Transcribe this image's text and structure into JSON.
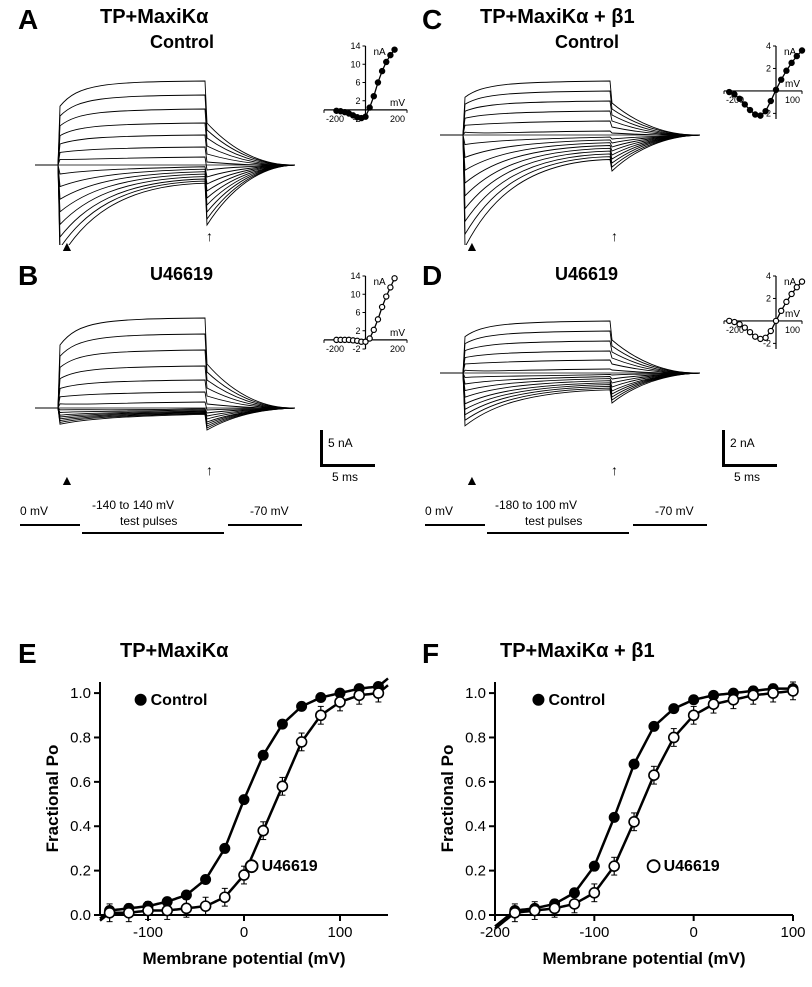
{
  "labels": {
    "A": "A",
    "B": "B",
    "C": "C",
    "D": "D",
    "E": "E",
    "F": "F"
  },
  "titles": {
    "AB": "TP+MaxiKα",
    "CD": "TP+MaxiKα + β1",
    "E": "TP+MaxiKα",
    "F": "TP+MaxiKα + β1",
    "A_sub": "Control",
    "B_sub": "U46619",
    "C_sub": "Control",
    "D_sub": "U46619"
  },
  "insets": {
    "A": {
      "nA_label": "nA",
      "mV_label": "mV",
      "yticks": [
        -2,
        2,
        6,
        10,
        14
      ],
      "xlim": [
        -200,
        200
      ],
      "ylim": [
        -2,
        14
      ],
      "pts": [
        [
          -140,
          -0.2
        ],
        [
          -120,
          -0.3
        ],
        [
          -100,
          -0.5
        ],
        [
          -80,
          -0.8
        ],
        [
          -60,
          -1.2
        ],
        [
          -40,
          -1.6
        ],
        [
          -20,
          -1.8
        ],
        [
          0,
          -1.5
        ],
        [
          20,
          0.5
        ],
        [
          40,
          3
        ],
        [
          60,
          6
        ],
        [
          80,
          8.5
        ],
        [
          100,
          10.5
        ],
        [
          120,
          12
        ],
        [
          140,
          13.2
        ]
      ],
      "marker": "filled"
    },
    "B": {
      "nA_label": "nA",
      "mV_label": "mV",
      "yticks": [
        -2,
        2,
        6,
        10,
        14
      ],
      "xlim": [
        -200,
        200
      ],
      "ylim": [
        -2,
        14
      ],
      "pts": [
        [
          -140,
          0
        ],
        [
          -120,
          0
        ],
        [
          -100,
          0
        ],
        [
          -80,
          0
        ],
        [
          -60,
          -0.1
        ],
        [
          -40,
          -0.2
        ],
        [
          -20,
          -0.4
        ],
        [
          0,
          -0.4
        ],
        [
          20,
          0.3
        ],
        [
          40,
          2.2
        ],
        [
          60,
          4.5
        ],
        [
          80,
          7.2
        ],
        [
          100,
          9.5
        ],
        [
          120,
          11.5
        ],
        [
          140,
          13.5
        ]
      ],
      "marker": "open"
    },
    "C": {
      "nA_label": "nA",
      "mV_label": "mV",
      "yticks": [
        -2,
        0,
        2,
        4
      ],
      "xlim": [
        -200,
        100
      ],
      "ylim": [
        -2.5,
        4
      ],
      "pts": [
        [
          -180,
          -0.1
        ],
        [
          -160,
          -0.3
        ],
        [
          -140,
          -0.7
        ],
        [
          -120,
          -1.2
        ],
        [
          -100,
          -1.7
        ],
        [
          -80,
          -2.1
        ],
        [
          -60,
          -2.2
        ],
        [
          -40,
          -1.8
        ],
        [
          -20,
          -0.9
        ],
        [
          0,
          0.1
        ],
        [
          20,
          1.0
        ],
        [
          40,
          1.8
        ],
        [
          60,
          2.5
        ],
        [
          80,
          3.1
        ],
        [
          100,
          3.6
        ]
      ],
      "marker": "filled"
    },
    "D": {
      "nA_label": "nA",
      "mV_label": "mV",
      "yticks": [
        -2,
        0,
        2,
        4
      ],
      "xlim": [
        -200,
        100
      ],
      "ylim": [
        -2.5,
        4
      ],
      "pts": [
        [
          -180,
          0
        ],
        [
          -160,
          -0.1
        ],
        [
          -140,
          -0.3
        ],
        [
          -120,
          -0.6
        ],
        [
          -100,
          -1.0
        ],
        [
          -80,
          -1.4
        ],
        [
          -60,
          -1.6
        ],
        [
          -40,
          -1.5
        ],
        [
          -20,
          -0.9
        ],
        [
          0,
          0
        ],
        [
          20,
          0.9
        ],
        [
          40,
          1.7
        ],
        [
          60,
          2.4
        ],
        [
          80,
          3.0
        ],
        [
          100,
          3.5
        ]
      ],
      "marker": "open"
    }
  },
  "scalebars": {
    "B": {
      "y": "5 nA",
      "x": "5 ms"
    },
    "D": {
      "y": "2 nA",
      "x": "5 ms"
    }
  },
  "protocols": {
    "left": {
      "hold": "0 mV",
      "range": "-140 to 140 mV",
      "sub": "test pulses",
      "tail": "-70 mV"
    },
    "right": {
      "hold": "0 mV",
      "range": "-180 to 100 mV",
      "sub": "test pulses",
      "tail": "-70 mV"
    }
  },
  "chartE": {
    "xlabel": "Membrane potential (mV)",
    "ylabel": "Fractional Po",
    "xlim": [
      -150,
      150
    ],
    "ylim": [
      0,
      1.05
    ],
    "xticks": [
      -100,
      0,
      100
    ],
    "yticks": [
      0,
      0.2,
      0.4,
      0.6,
      0.8,
      1.0
    ],
    "legend_control": "Control",
    "legend_u": "U46619",
    "ctrl": [
      [
        -140,
        0.02
      ],
      [
        -120,
        0.03
      ],
      [
        -100,
        0.04
      ],
      [
        -80,
        0.06
      ],
      [
        -60,
        0.09
      ],
      [
        -40,
        0.16
      ],
      [
        -20,
        0.3
      ],
      [
        0,
        0.52
      ],
      [
        20,
        0.72
      ],
      [
        40,
        0.86
      ],
      [
        60,
        0.94
      ],
      [
        80,
        0.98
      ],
      [
        100,
        1.0
      ],
      [
        120,
        1.02
      ],
      [
        140,
        1.03
      ]
    ],
    "u": [
      [
        -140,
        0.01
      ],
      [
        -120,
        0.01
      ],
      [
        -100,
        0.02
      ],
      [
        -80,
        0.02
      ],
      [
        -60,
        0.03
      ],
      [
        -40,
        0.04
      ],
      [
        -20,
        0.08
      ],
      [
        0,
        0.18
      ],
      [
        20,
        0.38
      ],
      [
        40,
        0.58
      ],
      [
        60,
        0.78
      ],
      [
        80,
        0.9
      ],
      [
        100,
        0.96
      ],
      [
        120,
        0.99
      ],
      [
        140,
        1.0
      ]
    ],
    "u_err": 0.04
  },
  "chartF": {
    "xlabel": "Membrane potential (mV)",
    "ylabel": "Fractional Po",
    "xlim": [
      -200,
      100
    ],
    "ylim": [
      0,
      1.05
    ],
    "xticks": [
      -200,
      -100,
      0,
      100
    ],
    "yticks": [
      0,
      0.2,
      0.4,
      0.6,
      0.8,
      1.0
    ],
    "legend_control": "Control",
    "legend_u": "U46619",
    "ctrl": [
      [
        -180,
        0.02
      ],
      [
        -160,
        0.03
      ],
      [
        -140,
        0.05
      ],
      [
        -120,
        0.1
      ],
      [
        -100,
        0.22
      ],
      [
        -80,
        0.44
      ],
      [
        -60,
        0.68
      ],
      [
        -40,
        0.85
      ],
      [
        -20,
        0.93
      ],
      [
        0,
        0.97
      ],
      [
        20,
        0.99
      ],
      [
        40,
        1.0
      ],
      [
        60,
        1.01
      ],
      [
        80,
        1.02
      ],
      [
        100,
        1.02
      ]
    ],
    "u": [
      [
        -180,
        0.01
      ],
      [
        -160,
        0.02
      ],
      [
        -140,
        0.03
      ],
      [
        -120,
        0.05
      ],
      [
        -100,
        0.1
      ],
      [
        -80,
        0.22
      ],
      [
        -60,
        0.42
      ],
      [
        -40,
        0.63
      ],
      [
        -20,
        0.8
      ],
      [
        0,
        0.9
      ],
      [
        20,
        0.95
      ],
      [
        40,
        0.97
      ],
      [
        60,
        0.99
      ],
      [
        80,
        1.0
      ],
      [
        100,
        1.01
      ]
    ],
    "u_err": 0.04
  },
  "colors": {
    "stroke": "#000000",
    "bg": "#ffffff"
  }
}
